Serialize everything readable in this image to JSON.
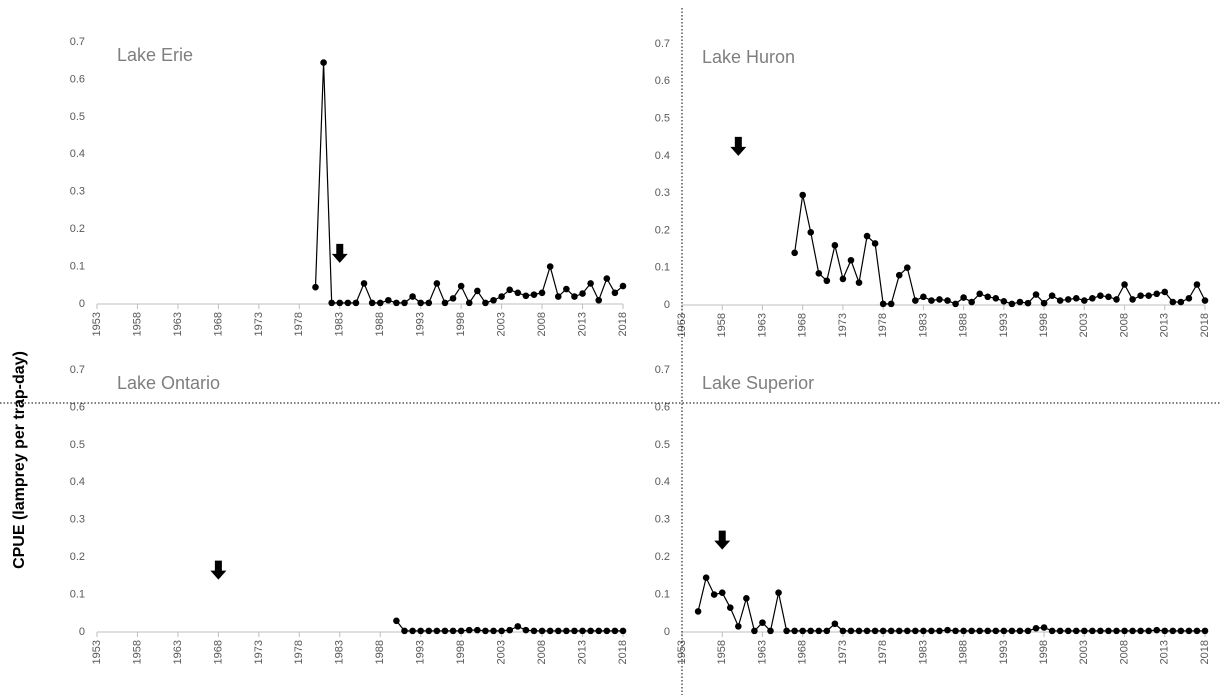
{
  "ylabel": "CPUE (lamprey per trap-day)",
  "chart_data": [
    {
      "type": "line",
      "title": "Lake Erie",
      "color": "#000000",
      "x": [
        1980,
        1981,
        1982,
        1983,
        1984,
        1985,
        1986,
        1987,
        1988,
        1989,
        1990,
        1991,
        1992,
        1993,
        1994,
        1995,
        1996,
        1997,
        1998,
        1999,
        2000,
        2001,
        2002,
        2003,
        2004,
        2005,
        2006,
        2007,
        2008,
        2009,
        2010,
        2011,
        2012,
        2013,
        2014,
        2015,
        2016,
        2017,
        2018
      ],
      "values": [
        0.045,
        0.645,
        0.003,
        0.003,
        0.003,
        0.003,
        0.055,
        0.003,
        0.003,
        0.01,
        0.003,
        0.003,
        0.02,
        0.003,
        0.003,
        0.055,
        0.003,
        0.015,
        0.048,
        0.003,
        0.035,
        0.003,
        0.01,
        0.02,
        0.038,
        0.03,
        0.022,
        0.025,
        0.03,
        0.1,
        0.02,
        0.04,
        0.02,
        0.028,
        0.055,
        0.01,
        0.068,
        0.03,
        0.048
      ],
      "arrow_x": 1983,
      "arrow_y": 0.11,
      "xlim": [
        1953,
        2018
      ],
      "xticks": [
        1953,
        1958,
        1963,
        1968,
        1973,
        1978,
        1983,
        1988,
        1993,
        1998,
        2003,
        2008,
        2013,
        2018
      ],
      "ylim": [
        0,
        0.7
      ],
      "yticks": [
        0,
        0.1,
        0.2,
        0.3,
        0.4,
        0.5,
        0.6,
        0.7
      ]
    },
    {
      "type": "line",
      "title": "Lake Huron",
      "color": "#000000",
      "x": [
        1967,
        1968,
        1969,
        1970,
        1971,
        1972,
        1973,
        1974,
        1975,
        1976,
        1977,
        1978,
        1979,
        1980,
        1981,
        1982,
        1983,
        1984,
        1985,
        1986,
        1987,
        1988,
        1989,
        1990,
        1991,
        1992,
        1993,
        1994,
        1995,
        1996,
        1997,
        1998,
        1999,
        2000,
        2001,
        2002,
        2003,
        2004,
        2005,
        2006,
        2007,
        2008,
        2009,
        2010,
        2011,
        2012,
        2013,
        2014,
        2015,
        2016,
        2017,
        2018
      ],
      "values": [
        0.14,
        0.295,
        0.195,
        0.085,
        0.065,
        0.16,
        0.07,
        0.12,
        0.06,
        0.185,
        0.165,
        0.003,
        0.003,
        0.08,
        0.1,
        0.012,
        0.022,
        0.012,
        0.015,
        0.012,
        0.003,
        0.02,
        0.008,
        0.03,
        0.022,
        0.018,
        0.01,
        0.003,
        0.008,
        0.005,
        0.028,
        0.005,
        0.025,
        0.012,
        0.015,
        0.018,
        0.012,
        0.018,
        0.025,
        0.022,
        0.015,
        0.055,
        0.015,
        0.025,
        0.025,
        0.03,
        0.035,
        0.008,
        0.008,
        0.018,
        0.055,
        0.012
      ],
      "arrow_x": 1960,
      "arrow_y": 0.4,
      "xlim": [
        1953,
        2018
      ],
      "xticks": [
        1953,
        1958,
        1963,
        1968,
        1973,
        1978,
        1983,
        1988,
        1993,
        1998,
        2003,
        2008,
        2013,
        2018
      ],
      "ylim": [
        0,
        0.7
      ],
      "yticks": [
        0,
        0.1,
        0.2,
        0.3,
        0.4,
        0.5,
        0.6,
        0.7
      ]
    },
    {
      "type": "line",
      "title": "Lake Ontario",
      "color": "#000000",
      "x": [
        1990,
        1991,
        1992,
        1993,
        1994,
        1995,
        1996,
        1997,
        1998,
        1999,
        2000,
        2001,
        2002,
        2003,
        2004,
        2005,
        2006,
        2007,
        2008,
        2009,
        2010,
        2011,
        2012,
        2013,
        2014,
        2015,
        2016,
        2017,
        2018
      ],
      "values": [
        0.03,
        0.003,
        0.003,
        0.003,
        0.003,
        0.003,
        0.003,
        0.003,
        0.003,
        0.005,
        0.005,
        0.003,
        0.003,
        0.003,
        0.005,
        0.015,
        0.005,
        0.003,
        0.003,
        0.003,
        0.003,
        0.003,
        0.003,
        0.003,
        0.003,
        0.003,
        0.003,
        0.003,
        0.003
      ],
      "arrow_x": 1968,
      "arrow_y": 0.14,
      "xlim": [
        1953,
        2018
      ],
      "xticks": [
        1953,
        1958,
        1963,
        1968,
        1973,
        1978,
        1983,
        1988,
        1993,
        1998,
        2003,
        2008,
        2013,
        2018
      ],
      "ylim": [
        0,
        0.7
      ],
      "yticks": [
        0,
        0.1,
        0.2,
        0.3,
        0.4,
        0.5,
        0.6,
        0.7
      ]
    },
    {
      "type": "line",
      "title": "Lake Superior",
      "color": "#000000",
      "x": [
        1955,
        1956,
        1957,
        1958,
        1959,
        1960,
        1961,
        1962,
        1963,
        1964,
        1965,
        1966,
        1967,
        1968,
        1969,
        1970,
        1971,
        1972,
        1973,
        1974,
        1975,
        1976,
        1977,
        1978,
        1979,
        1980,
        1981,
        1982,
        1983,
        1984,
        1985,
        1986,
        1987,
        1988,
        1989,
        1990,
        1991,
        1992,
        1993,
        1994,
        1995,
        1996,
        1997,
        1998,
        1999,
        2000,
        2001,
        2002,
        2003,
        2004,
        2005,
        2006,
        2007,
        2008,
        2009,
        2010,
        2011,
        2012,
        2013,
        2014,
        2015,
        2016,
        2017,
        2018
      ],
      "values": [
        0.055,
        0.145,
        0.1,
        0.105,
        0.065,
        0.015,
        0.09,
        0.003,
        0.025,
        0.003,
        0.105,
        0.003,
        0.003,
        0.003,
        0.003,
        0.003,
        0.003,
        0.022,
        0.003,
        0.003,
        0.003,
        0.003,
        0.003,
        0.003,
        0.003,
        0.003,
        0.003,
        0.003,
        0.003,
        0.003,
        0.003,
        0.005,
        0.003,
        0.003,
        0.003,
        0.003,
        0.003,
        0.003,
        0.003,
        0.003,
        0.003,
        0.003,
        0.01,
        0.012,
        0.003,
        0.003,
        0.003,
        0.003,
        0.003,
        0.003,
        0.003,
        0.003,
        0.003,
        0.003,
        0.003,
        0.003,
        0.003,
        0.005,
        0.003,
        0.003,
        0.003,
        0.003,
        0.003,
        0.003
      ],
      "arrow_x": 1958,
      "arrow_y": 0.22,
      "xlim": [
        1953,
        2018
      ],
      "xticks": [
        1953,
        1958,
        1963,
        1968,
        1973,
        1978,
        1983,
        1988,
        1993,
        1998,
        2003,
        2008,
        2013,
        2018
      ],
      "ylim": [
        0,
        0.7
      ],
      "yticks": [
        0,
        0.1,
        0.2,
        0.3,
        0.4,
        0.5,
        0.6,
        0.7
      ]
    }
  ]
}
